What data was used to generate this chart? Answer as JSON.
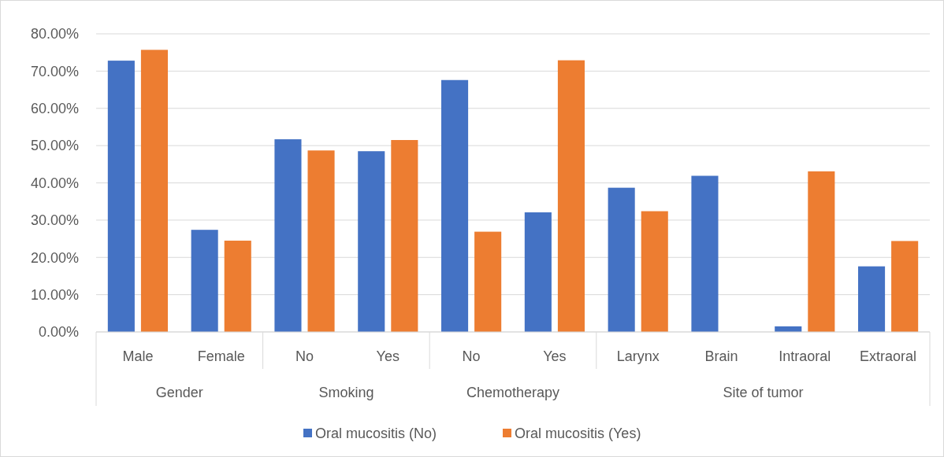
{
  "chart_data": {
    "type": "bar",
    "categories": [
      "Male",
      "Female",
      "No",
      "Yes",
      "No",
      "Yes",
      "Larynx",
      "Brain",
      "Intraoral",
      "Extraoral"
    ],
    "series": [
      {
        "name": "Oral mucositis (No)",
        "color": "#4472c4",
        "values": [
          72.8,
          27.4,
          51.7,
          48.5,
          67.6,
          32.1,
          38.7,
          41.9,
          1.5,
          17.6
        ]
      },
      {
        "name": "Oral mucositis (Yes)",
        "color": "#ed7d31",
        "values": [
          75.7,
          24.5,
          48.7,
          51.5,
          26.9,
          72.9,
          32.4,
          0,
          43.1,
          24.4
        ]
      }
    ],
    "annotations": [
      "Gender",
      "Smoking",
      "Chemotherapy",
      "Site of tumor"
    ],
    "ylim": [
      0,
      80
    ],
    "yticks": [
      {
        "value": 0,
        "label": "0.00%"
      },
      {
        "value": 10,
        "label": "10.00%"
      },
      {
        "value": 20,
        "label": "20.00%"
      },
      {
        "value": 30,
        "label": "30.00%"
      },
      {
        "value": 40,
        "label": "40.00%"
      },
      {
        "value": 50,
        "label": "50.00%"
      },
      {
        "value": 60,
        "label": "60.00%"
      },
      {
        "value": 70,
        "label": "70.00%"
      },
      {
        "value": 80,
        "label": "80.00%"
      }
    ],
    "grid": "y",
    "legend": "bottom"
  }
}
